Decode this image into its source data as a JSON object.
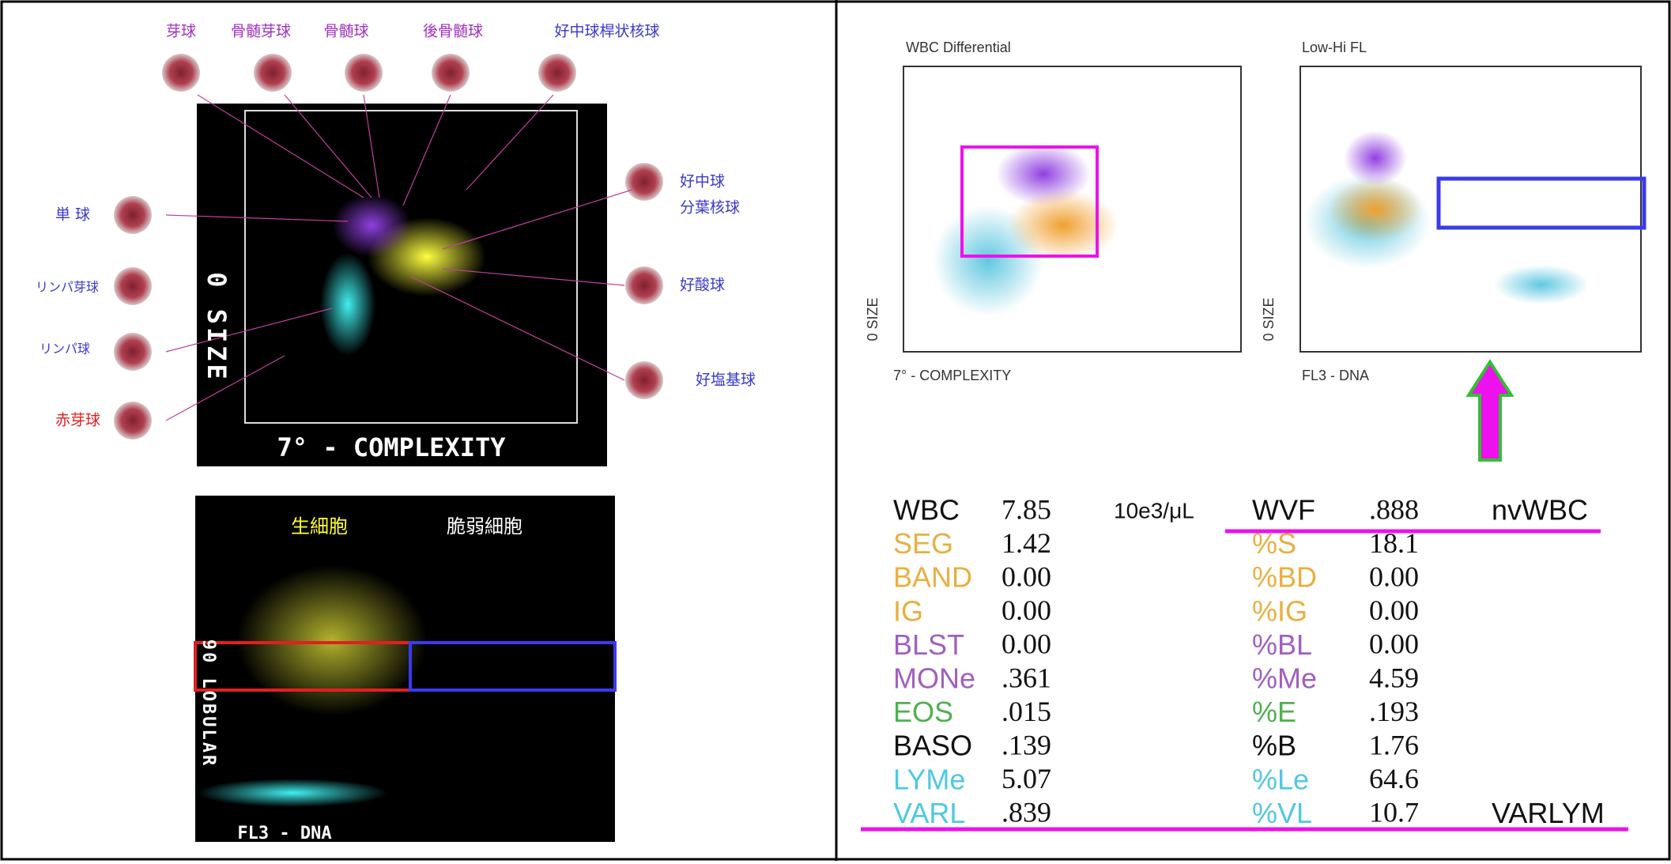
{
  "left": {
    "top_labels": [
      "芽球",
      "骨髄芽球",
      "骨髄球",
      "後骨髄球",
      "好中球桿状核球"
    ],
    "left_labels": [
      "単 球",
      "リンパ芽球",
      "リンパ球",
      "赤芽球"
    ],
    "right_labels": [
      "好中球",
      "分葉核球",
      "好酸球",
      "好塩基球"
    ],
    "plot1": {
      "y_axis": "0 SIZE",
      "x_axis": "7° - COMPLEXITY"
    },
    "plot2": {
      "label_live": "生細胞",
      "label_fragile": "脆弱細胞",
      "y_axis": "90 LOBULAR",
      "x_axis": "FL3 - DNA"
    }
  },
  "right": {
    "plot1": {
      "title": "WBC Differential",
      "y_axis": "0 SIZE",
      "x_axis": "7° - COMPLEXITY"
    },
    "plot2": {
      "title": "Low-Hi FL",
      "y_axis": "0 SIZE",
      "x_axis": "FL3 - DNA"
    },
    "table": {
      "rows": [
        [
          "WBC",
          "7.85",
          "10e3/μL",
          "WVF",
          ".888",
          "nvWBC"
        ],
        [
          "SEG",
          "1.42",
          "",
          "%S",
          "18.1",
          ""
        ],
        [
          "BAND",
          "0.00",
          "",
          "%BD",
          "0.00",
          ""
        ],
        [
          "IG",
          "0.00",
          "",
          "%IG",
          "0.00",
          ""
        ],
        [
          "BLST",
          "0.00",
          "",
          "%BL",
          "0.00",
          ""
        ],
        [
          "MONe",
          ".361",
          "",
          "%Me",
          "4.59",
          ""
        ],
        [
          "EOS",
          ".015",
          "",
          "%E",
          ".193",
          ""
        ],
        [
          "BASO",
          ".139",
          "",
          "%B",
          "1.76",
          ""
        ],
        [
          "LYMe",
          "5.07",
          "",
          "%Le",
          "64.6",
          ""
        ],
        [
          "VARL",
          ".839",
          "",
          "%VL",
          "10.7",
          "VARLYM"
        ]
      ],
      "row_colors": [
        "#111111",
        "#e8b040",
        "#e8b040",
        "#e8b040",
        "#a060c0",
        "#a060c0",
        "#50b050",
        "#111111",
        "#50c8e0",
        "#50c8e0"
      ]
    }
  }
}
